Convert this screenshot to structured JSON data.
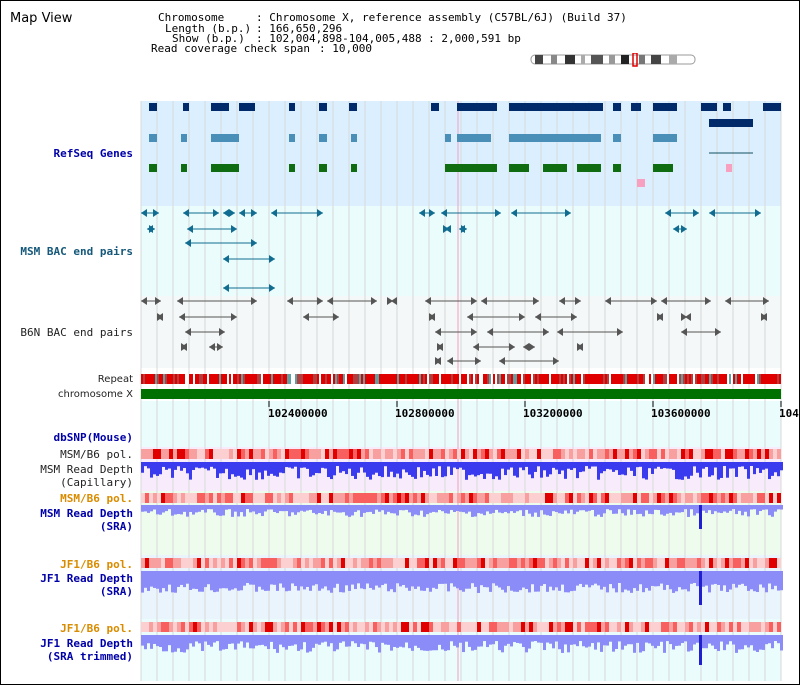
{
  "title": "Map View",
  "header": {
    "chromosome_label": "Chromosome",
    "chromosome_value": ": Chromosome X, reference assembly (C57BL/6J) (Build 37)",
    "length_label": "Length (b.p.)",
    "length_value": ": 166,650,296",
    "show_label": "Show (b.p.)",
    "show_value": ": 102,004,898-104,005,488 : 2,000,591 bp",
    "coverage_label": "Read coverage check span",
    "coverage_value": ": 10,000"
  },
  "tracks": {
    "refseq": "RefSeq Genes",
    "msm_bac": "MSM BAC end pairs",
    "b6n_bac": "B6N BAC end pairs",
    "repeat": "Repeat",
    "chromosome": "chromosome X",
    "dbsnp": "dbSNP(Mouse)",
    "msm_pol": "MSM/B6 pol.",
    "msm_depth_cap_1": "MSM Read Depth",
    "msm_depth_cap_2": "(Capillary)",
    "msm_pol_2": "MSM/B6 pol.",
    "msm_depth_sra_1": "MSM Read Depth",
    "msm_depth_sra_2": "(SRA)",
    "jf1_pol": "JF1/B6 pol.",
    "jf1_depth_1": "JF1 Read Depth",
    "jf1_depth_2": "(SRA)",
    "jf1_pol_2": "JF1/B6 pol.",
    "jf1_trim_1": "JF1 Read Depth",
    "jf1_trim_2": "(SRA trimmed)"
  },
  "ruler": {
    "ticks": [
      "102400000",
      "102800000",
      "103200000",
      "103600000",
      "104"
    ]
  },
  "colors": {
    "refseq_bg": "#dcefff",
    "bac_bg": "#eafcfc",
    "gene_dark": "#002a6a",
    "gene_mid": "#4a8fb8",
    "gene_green": "#106c10",
    "chrom_green": "#007000",
    "repeat_red": "#e00000",
    "depth_blue": "#3a3aee",
    "depth_light": "#8c8cf8",
    "pol_pink": "#f8a0a0"
  }
}
